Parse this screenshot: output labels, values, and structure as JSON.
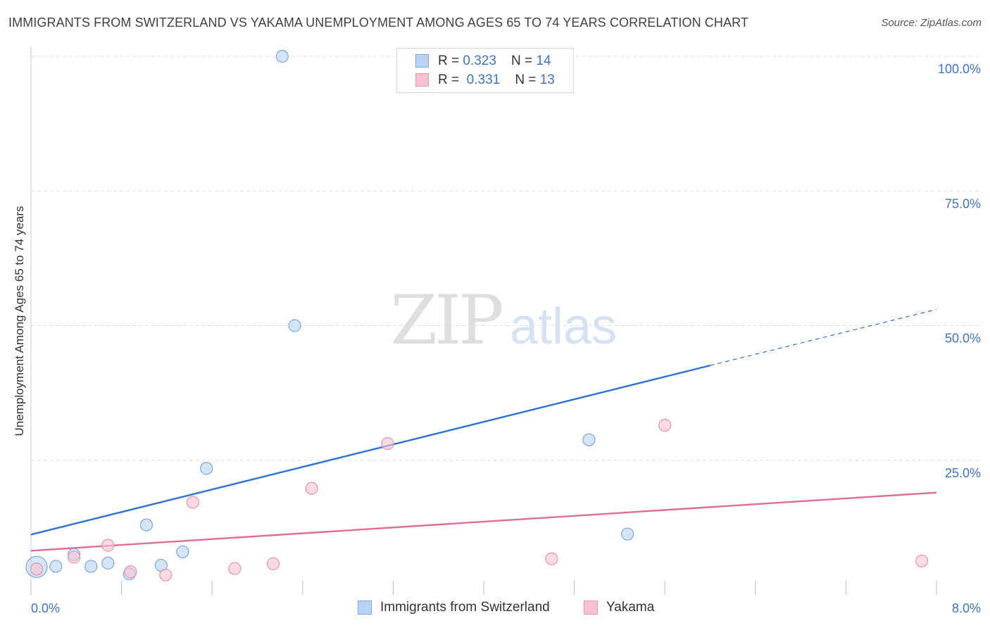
{
  "title": "IMMIGRANTS FROM SWITZERLAND VS YAKAMA UNEMPLOYMENT AMONG AGES 65 TO 74 YEARS CORRELATION CHART",
  "source": "Source: ZipAtlas.com",
  "watermark": {
    "zip": "ZIP",
    "atlas": "atlas"
  },
  "legend_top": {
    "rows": [
      {
        "r_label": "R = ",
        "r_value": "0.323",
        "n_label": "N = ",
        "n_value": "14"
      },
      {
        "r_label": "R = ",
        "r_value": "0.331",
        "n_label": "N = ",
        "n_value": "13"
      }
    ]
  },
  "legend_bottom": {
    "items": [
      {
        "label": "Immigrants from Switzerland"
      },
      {
        "label": "Yakama"
      }
    ]
  },
  "colors": {
    "blue_fill": "#b8d3f3",
    "blue_stroke": "#7aa6dc",
    "blue_line": "#2f72cf",
    "pink_fill": "#f7c3d2",
    "pink_stroke": "#eb92ad",
    "pink_line": "#e06c93",
    "grid": "#dddddd",
    "tick_label": "#3b74c4"
  },
  "chart_data": {
    "type": "scatter",
    "title": "IMMIGRANTS FROM SWITZERLAND VS YAKAMA UNEMPLOYMENT AMONG AGES 65 TO 74 YEARS CORRELATION CHART",
    "xlabel": "",
    "ylabel": "Unemployment Among Ages 65 to 74 years",
    "xlim": [
      0,
      8
    ],
    "ylim": [
      0,
      100
    ],
    "x_tick_labels": [
      {
        "value": 0,
        "label": "0.0%"
      },
      {
        "value": 8,
        "label": "8.0%"
      }
    ],
    "y_tick_labels": [
      {
        "value": 25,
        "label": "25.0%"
      },
      {
        "value": 50,
        "label": "50.0%"
      },
      {
        "value": 75,
        "label": "75.0%"
      },
      {
        "value": 100,
        "label": "100.0%"
      }
    ],
    "series": [
      {
        "name": "Immigrants from Switzerland",
        "color": "blue",
        "points": [
          {
            "x": 0.05,
            "y": 5.2,
            "big": true
          },
          {
            "x": 0.22,
            "y": 5.3
          },
          {
            "x": 0.38,
            "y": 7.5
          },
          {
            "x": 0.53,
            "y": 5.3
          },
          {
            "x": 0.68,
            "y": 5.9
          },
          {
            "x": 0.87,
            "y": 3.9
          },
          {
            "x": 1.02,
            "y": 13.0
          },
          {
            "x": 1.15,
            "y": 5.5
          },
          {
            "x": 1.34,
            "y": 8.0
          },
          {
            "x": 1.55,
            "y": 23.5
          },
          {
            "x": 2.22,
            "y": 100.0
          },
          {
            "x": 2.33,
            "y": 50.0
          },
          {
            "x": 4.93,
            "y": 28.8
          },
          {
            "x": 5.27,
            "y": 11.3
          }
        ],
        "trend": {
          "x0": 0.0,
          "y0": 11.2,
          "x1": 6.0,
          "y1": 42.6,
          "dash_to_x": 8.0,
          "dash_to_y": 53.0
        }
      },
      {
        "name": "Yakama",
        "color": "pink",
        "points": [
          {
            "x": 0.05,
            "y": 4.8
          },
          {
            "x": 0.38,
            "y": 7.0
          },
          {
            "x": 0.68,
            "y": 9.2
          },
          {
            "x": 0.88,
            "y": 4.3
          },
          {
            "x": 1.19,
            "y": 3.7
          },
          {
            "x": 1.43,
            "y": 17.2
          },
          {
            "x": 1.8,
            "y": 4.9
          },
          {
            "x": 2.14,
            "y": 5.8
          },
          {
            "x": 2.48,
            "y": 19.8
          },
          {
            "x": 3.15,
            "y": 28.1
          },
          {
            "x": 4.6,
            "y": 6.7
          },
          {
            "x": 5.6,
            "y": 31.5
          },
          {
            "x": 7.87,
            "y": 6.3
          }
        ],
        "trend": {
          "x0": 0.0,
          "y0": 8.2,
          "x1": 8.0,
          "y1": 19.0
        }
      }
    ]
  }
}
